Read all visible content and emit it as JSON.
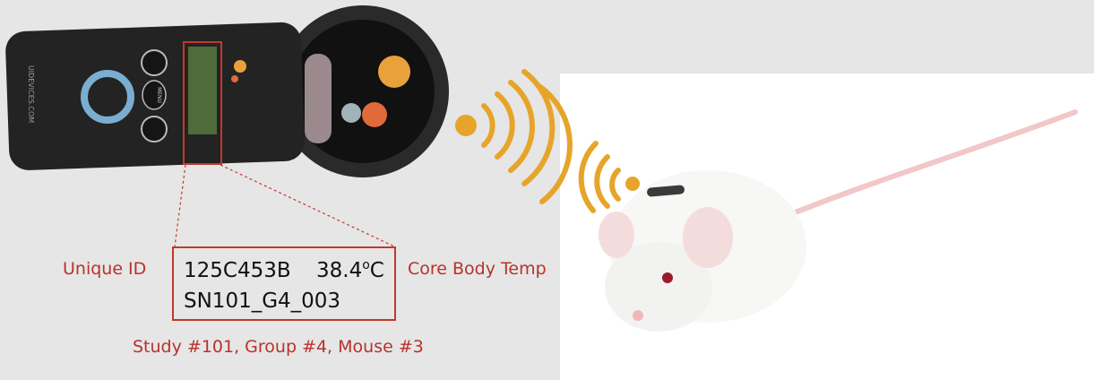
{
  "device": {
    "brand_url": "UIDEVICES.COM",
    "menu_button": "MENU"
  },
  "readout": {
    "id_label": "Unique ID",
    "id_value": "125C453B",
    "temp_value": "38.4",
    "temp_degree": "o",
    "temp_unit": "C",
    "temp_label": "Core Body Temp",
    "animal_code": "SN101_G4_003",
    "animal_code_caption": "Study #101, Group #4, Mouse #3"
  }
}
